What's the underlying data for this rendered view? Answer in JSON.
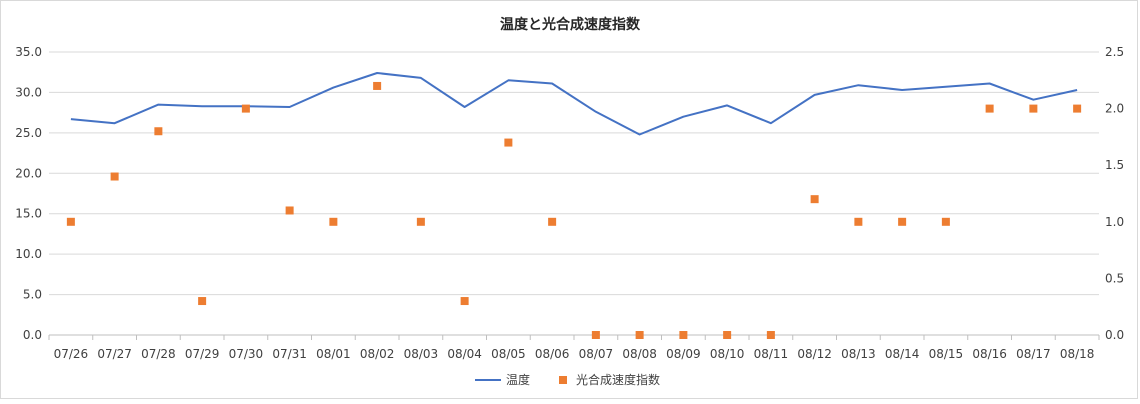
{
  "chart_data": {
    "type": "line",
    "title": "温度と光合成速度指数",
    "categories": [
      "07/26",
      "07/27",
      "07/28",
      "07/29",
      "07/30",
      "07/31",
      "08/01",
      "08/02",
      "08/03",
      "08/04",
      "08/05",
      "08/06",
      "08/07",
      "08/08",
      "08/09",
      "08/10",
      "08/11",
      "08/12",
      "08/13",
      "08/14",
      "08/15",
      "08/16",
      "08/17",
      "08/18"
    ],
    "y_left": {
      "ylim": [
        0,
        35
      ],
      "ticks": [
        "0.0",
        "5.0",
        "10.0",
        "15.0",
        "20.0",
        "25.0",
        "30.0",
        "35.0"
      ]
    },
    "y_right": {
      "ylim": [
        0,
        2.5
      ],
      "ticks": [
        "0.0",
        "0.5",
        "1.0",
        "1.5",
        "2.0",
        "2.5"
      ]
    },
    "grid": true,
    "legend_position": "bottom",
    "series": [
      {
        "name": "温度",
        "type": "line",
        "axis": "left",
        "color": "#4472C4",
        "values": [
          26.7,
          26.2,
          28.5,
          28.3,
          28.3,
          28.2,
          30.6,
          32.4,
          31.8,
          28.2,
          31.5,
          31.1,
          27.6,
          24.8,
          27.0,
          28.4,
          26.2,
          29.7,
          30.9,
          30.3,
          30.7,
          31.1,
          29.1,
          30.3
        ]
      },
      {
        "name": "光合成速度指数",
        "type": "scatter",
        "axis": "right",
        "color": "#ED7D31",
        "values": [
          1.0,
          1.4,
          1.8,
          0.3,
          2.0,
          1.1,
          1.0,
          2.2,
          1.0,
          0.3,
          1.7,
          1.0,
          0.0,
          0.0,
          0.0,
          0.0,
          0.0,
          1.2,
          1.0,
          1.0,
          1.0,
          2.0,
          2.0,
          2.0
        ]
      }
    ]
  }
}
